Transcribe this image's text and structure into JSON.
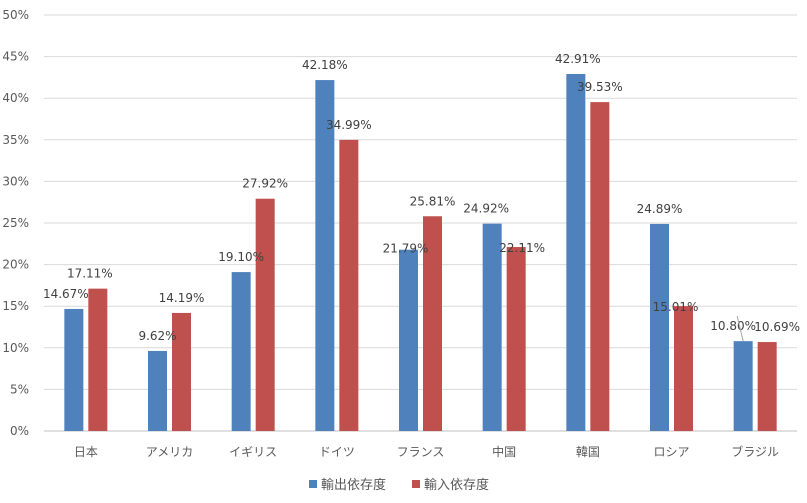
{
  "chart_data": {
    "type": "bar",
    "categories": [
      "日本",
      "アメリカ",
      "イギリス",
      "ドイツ",
      "フランス",
      "中国",
      "韓国",
      "ロシア",
      "ブラジル"
    ],
    "series": [
      {
        "name": "輸出依存度",
        "color": "#4f81bd",
        "values": [
          14.67,
          9.62,
          19.1,
          42.18,
          21.79,
          24.92,
          42.91,
          24.89,
          10.8
        ],
        "labels": [
          "14.67%",
          "9.62%",
          "19.10%",
          "42.18%",
          "21.79%",
          "24.92%",
          "42.91%",
          "24.89%",
          "10.80%"
        ]
      },
      {
        "name": "輸入依存度",
        "color": "#c0504d",
        "values": [
          17.11,
          14.19,
          27.92,
          34.99,
          25.81,
          22.11,
          39.53,
          15.01,
          10.69
        ],
        "labels": [
          "17.11%",
          "14.19%",
          "27.92%",
          "34.99%",
          "25.81%",
          "22.11%",
          "39.53%",
          "15.01%",
          "10.69%"
        ]
      }
    ],
    "y_ticks": [
      "0%",
      "5%",
      "10%",
      "15%",
      "20%",
      "25%",
      "30%",
      "35%",
      "40%",
      "45%",
      "50%"
    ],
    "ylim": [
      0,
      50
    ],
    "title": "",
    "xlabel": "",
    "ylabel": "",
    "grid": true,
    "legend_position": "bottom"
  }
}
